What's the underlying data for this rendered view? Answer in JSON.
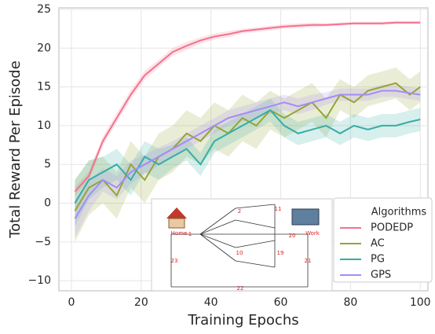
{
  "chart_data": {
    "type": "line",
    "x_label": "Training Epochs",
    "y_label": "Total Reward Per Episode",
    "legend_title": "Algorithms",
    "legend": "lower right",
    "grid": true,
    "x": [
      1,
      5,
      9,
      13,
      17,
      21,
      25,
      29,
      33,
      37,
      41,
      45,
      49,
      53,
      57,
      61,
      65,
      69,
      73,
      77,
      81,
      85,
      89,
      93,
      97,
      100
    ],
    "series": [
      {
        "name": "PODEDP",
        "color": "#f4718d",
        "values": [
          1.5,
          3.5,
          8,
          11,
          14,
          16.5,
          18,
          19.5,
          20.3,
          21,
          21.5,
          21.8,
          22.2,
          22.4,
          22.6,
          22.8,
          22.9,
          23,
          23,
          23.1,
          23.2,
          23.2,
          23.2,
          23.3,
          23.3,
          23.3
        ],
        "error": [
          0.6,
          0.6,
          0.6,
          0.6,
          0.6,
          0.6,
          0.5,
          0.5,
          0.5,
          0.4,
          0.4,
          0.4,
          0.3,
          0.3,
          0.3,
          0.3,
          0.3,
          0.3,
          0.2,
          0.2,
          0.2,
          0.2,
          0.2,
          0.2,
          0.2,
          0.2
        ]
      },
      {
        "name": "AC",
        "color": "#97a431",
        "values": [
          -1,
          2,
          3,
          1,
          5,
          3,
          6,
          7,
          9,
          8,
          10,
          9,
          11,
          10,
          12,
          11,
          12,
          13,
          11,
          14,
          13,
          14.5,
          15,
          15.5,
          14,
          15
        ],
        "error": [
          4,
          3.5,
          3,
          3,
          3,
          3,
          3,
          3,
          3,
          3,
          3,
          3,
          3,
          3,
          2.5,
          2.5,
          2.5,
          2.5,
          2.5,
          2,
          2,
          2,
          2,
          2,
          2,
          2
        ]
      },
      {
        "name": "PG",
        "color": "#36ada4",
        "values": [
          0,
          3,
          4,
          5,
          3,
          6,
          5,
          6,
          7,
          5,
          8,
          9,
          10,
          11,
          12,
          10,
          9,
          9.5,
          10,
          9,
          10,
          9.5,
          10,
          10,
          10.5,
          10.8
        ],
        "error": [
          3,
          2.5,
          2,
          2,
          2,
          2,
          2,
          1.5,
          1.5,
          1.5,
          1.5,
          1.5,
          1.5,
          1.5,
          1.5,
          1.5,
          1.5,
          1.5,
          1.5,
          1.5,
          1.5,
          1.5,
          1.5,
          1.5,
          1.5,
          1.5
        ]
      },
      {
        "name": "GPS",
        "color": "#a48cf4",
        "values": [
          -2,
          1,
          3,
          2,
          4,
          5,
          6,
          7,
          8,
          9,
          10,
          11,
          11.5,
          12,
          12.5,
          13,
          12.5,
          13,
          13.5,
          14,
          14,
          14,
          14.5,
          14.5,
          14.2,
          14
        ],
        "error": [
          2.5,
          2,
          1.5,
          1.5,
          1.5,
          1.2,
          1.2,
          1,
          1,
          1,
          1,
          1,
          1,
          1,
          1,
          1,
          1,
          1,
          0.8,
          0.8,
          0.8,
          0.8,
          0.8,
          0.8,
          0.8,
          0.8
        ]
      }
    ],
    "xlim": [
      -3.6,
      102.2
    ],
    "ylim": [
      -11.3,
      25.2
    ],
    "xticks": [
      0,
      20,
      40,
      60,
      80,
      100
    ],
    "yticks": [
      {
        "value": -10,
        "label": "−10"
      },
      {
        "value": -5,
        "label": "−5"
      },
      0,
      5,
      10,
      15,
      20,
      25
    ],
    "inset": {
      "labels": [
        "Home",
        "Work",
        "1",
        "2",
        "10",
        "11",
        "19",
        "20",
        "21",
        "22",
        "23"
      ]
    }
  }
}
